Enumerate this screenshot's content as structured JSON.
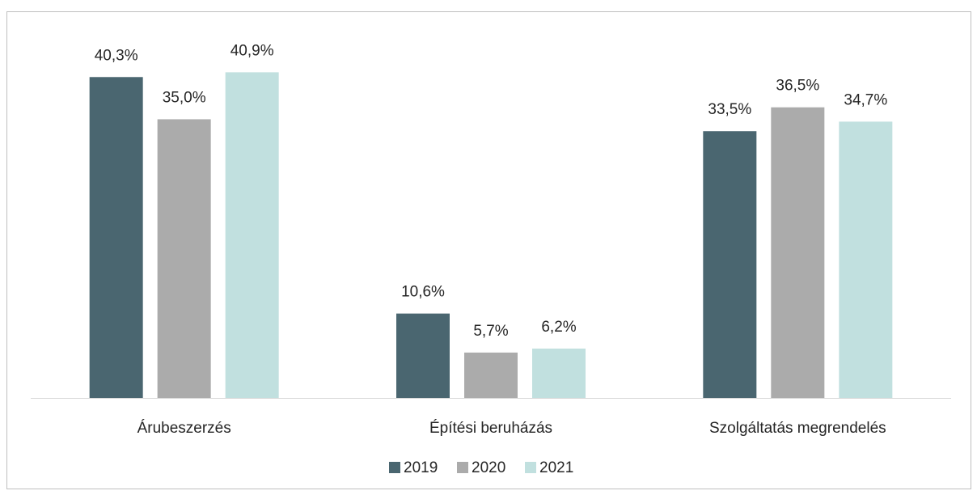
{
  "chart_data": {
    "type": "bar",
    "categories": [
      "Árubeszerzés",
      "Építési beruházás",
      "Szolgáltatás megrendelés"
    ],
    "series": [
      {
        "name": "2019",
        "color": "#4a6670",
        "values": [
          40.3,
          10.6,
          33.5
        ],
        "value_labels": [
          "40,3%",
          "10,6%",
          "33,5%"
        ]
      },
      {
        "name": "2020",
        "color": "#ababab",
        "values": [
          35.0,
          5.7,
          36.5
        ],
        "value_labels": [
          "35,0%",
          "5,7%",
          "36,5%"
        ]
      },
      {
        "name": "2021",
        "color": "#c1e0df",
        "values": [
          40.9,
          6.2,
          34.7
        ],
        "value_labels": [
          "40,9%",
          "6,2%",
          "34,7%"
        ]
      }
    ],
    "ylim": [
      0,
      45
    ],
    "legend": "bottom"
  }
}
